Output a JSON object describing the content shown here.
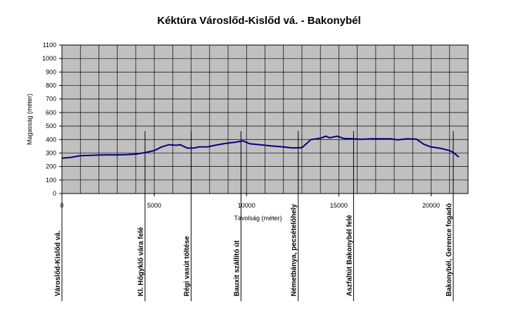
{
  "chart_data": {
    "type": "line",
    "title": "Kéktúra Városlőd-Kislőd vá. - Bakonybél",
    "xlabel": "Távolság (méter)",
    "ylabel": "Magasság (méter)",
    "xlim": [
      0,
      22000
    ],
    "ylim": [
      0,
      1100
    ],
    "x_ticks": [
      0,
      5000,
      10000,
      15000,
      20000
    ],
    "y_ticks": [
      0,
      100,
      200,
      300,
      400,
      500,
      600,
      700,
      800,
      900,
      1000,
      1100
    ],
    "grid": true,
    "series": [
      {
        "x": [
          0,
          500,
          1000,
          1500,
          2000,
          2500,
          3000,
          3500,
          4000,
          4500,
          5000,
          5400,
          5800,
          6200,
          6400,
          6800,
          7200,
          7400,
          7900,
          8400,
          8900,
          9400,
          9800,
          10200,
          10800,
          11400,
          12000,
          12500,
          13000,
          13500,
          14000,
          14300,
          14500,
          14900,
          15300,
          15800,
          16200,
          16800,
          17400,
          17800,
          18200,
          18700,
          19200,
          19600,
          20000,
          20500,
          21000,
          21200,
          21500
        ],
        "values": [
          262,
          268,
          280,
          282,
          285,
          286,
          286,
          288,
          292,
          303,
          318,
          345,
          362,
          357,
          362,
          336,
          338,
          345,
          346,
          360,
          372,
          380,
          390,
          368,
          360,
          352,
          345,
          338,
          340,
          400,
          410,
          425,
          413,
          425,
          407,
          405,
          402,
          405,
          405,
          405,
          397,
          405,
          403,
          365,
          345,
          335,
          318,
          305,
          270
        ]
      }
    ],
    "waypoints": [
      {
        "x": 0,
        "label": "Városlőd-Kislőd vá."
      },
      {
        "x": 4500,
        "label": "Kl. Hőgyklő vára felé"
      },
      {
        "x": 7000,
        "label": "Régi vasút töltése"
      },
      {
        "x": 9700,
        "label": "Bauxit szállító út"
      },
      {
        "x": 12800,
        "label": "Németbánya, pecsételőhely"
      },
      {
        "x": 15800,
        "label": "Aszfaltút Bakonybél felé"
      },
      {
        "x": 21200,
        "label": "Bakonybél, Gerence fogadó"
      }
    ],
    "colors": {
      "plot_bg": "#c0c0c0",
      "line": "#000080",
      "grid": "#000000"
    }
  }
}
